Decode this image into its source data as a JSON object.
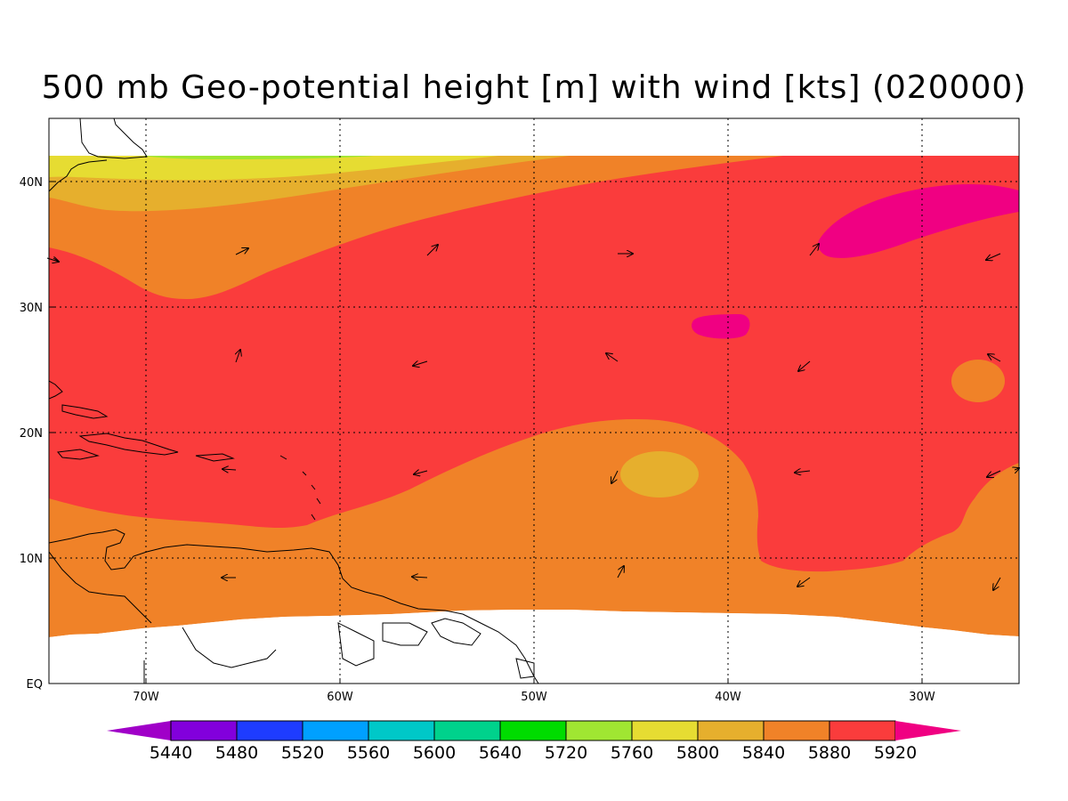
{
  "title": "500 mb Geo-potential height [m] with wind [kts] (020000)",
  "map": {
    "lon_labels": [
      "70W",
      "60W",
      "50W",
      "40W",
      "30W"
    ],
    "lat_labels": [
      "40N",
      "30N",
      "20N",
      "10N",
      "EQ"
    ],
    "lon_range": [
      -75,
      -25
    ],
    "lat_range": [
      0,
      45
    ],
    "gridlines": "dotted"
  },
  "colorbar": {
    "labels": [
      "5440",
      "5480",
      "5520",
      "5560",
      "5600",
      "5640",
      "5720",
      "5760",
      "5800",
      "5840",
      "5880",
      "5920"
    ],
    "colors": [
      "#a000c8",
      "#8200dc",
      "#1e3cff",
      "#00a0ff",
      "#00c8c8",
      "#00d28c",
      "#00dc00",
      "#a0e632",
      "#e6dc32",
      "#e6af2d",
      "#f08228",
      "#fa3c3c",
      "#f00082"
    ]
  },
  "legend_palette": {
    "contour_5800": "#e6dc32",
    "contour_5840": "#e6af2d",
    "contour_5880": "#f08228",
    "contour_5920": "#fa3c3c",
    "contour_max": "#f00082"
  }
}
